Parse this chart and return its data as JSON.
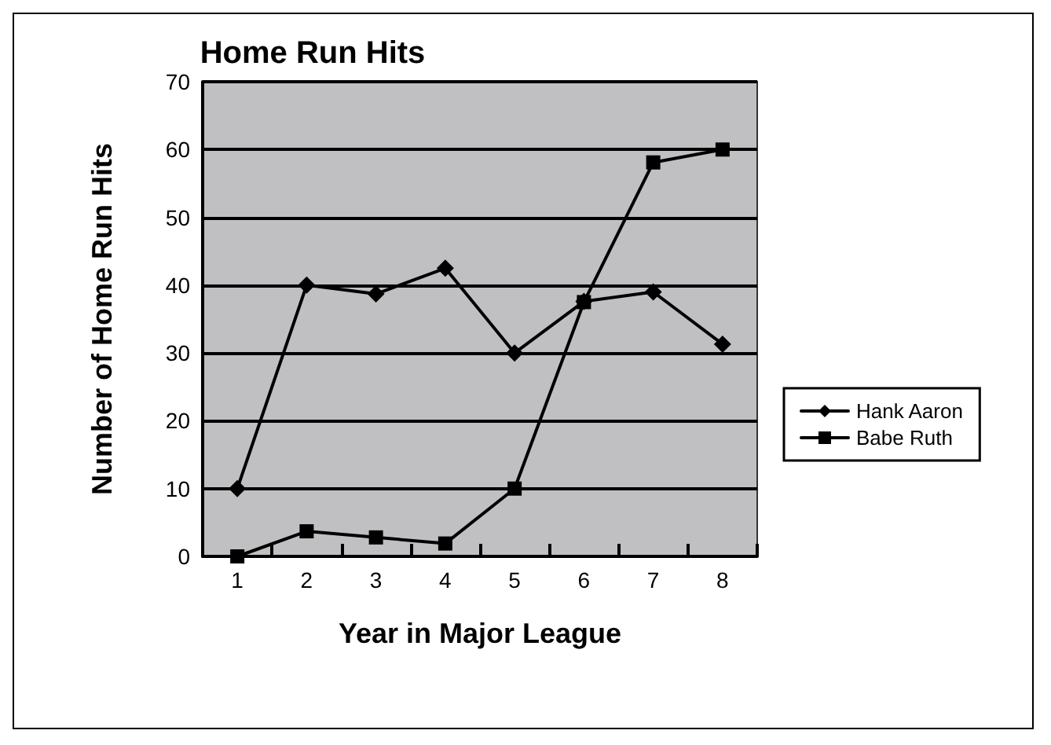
{
  "chart_data": {
    "type": "line",
    "title": "Home Run Hits",
    "xlabel": "Year in Major League",
    "ylabel": "Number of Home Run Hits",
    "categories": [
      "1",
      "2",
      "3",
      "4",
      "5",
      "6",
      "7",
      "8"
    ],
    "series": [
      {
        "name": "Hank Aaron",
        "color": "#000000",
        "marker": "diamond",
        "values": [
          10,
          40,
          38.7,
          42.5,
          30,
          37.6,
          39,
          31.3
        ]
      },
      {
        "name": "Babe Ruth",
        "color": "#000000",
        "marker": "square",
        "values": [
          0,
          3.7,
          2.8,
          1.9,
          10,
          37.5,
          58.1,
          60
        ]
      }
    ],
    "ylim": [
      0,
      70
    ],
    "yticks": [
      0,
      10,
      20,
      30,
      40,
      50,
      60,
      70
    ],
    "grid": "y",
    "legend": "right"
  }
}
